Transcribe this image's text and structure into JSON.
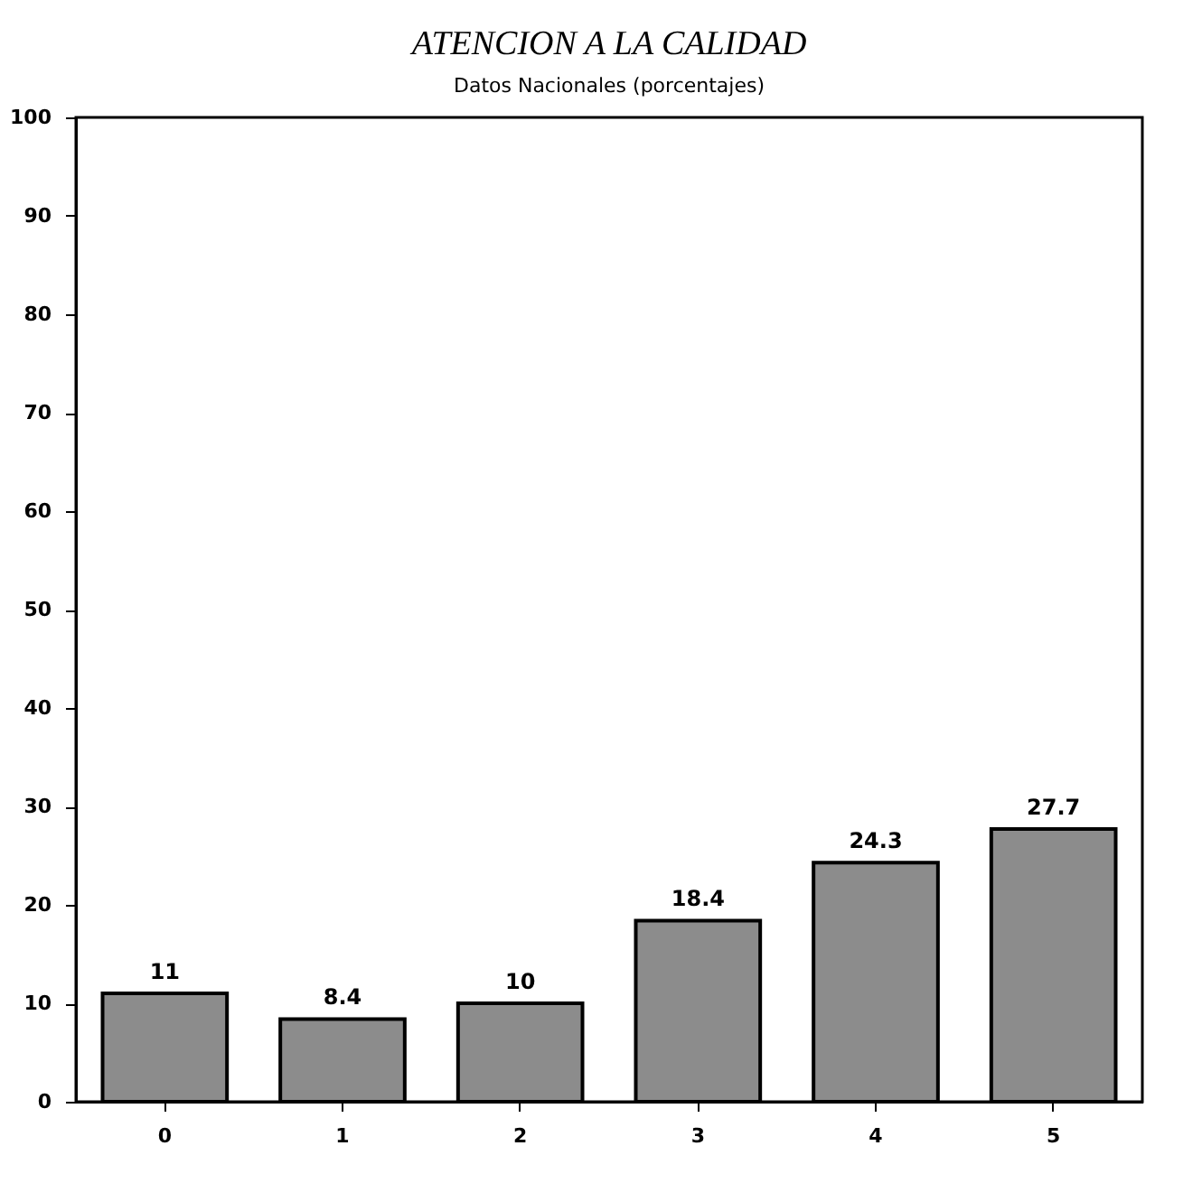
{
  "chart_data": {
    "type": "bar",
    "title": "ATENCION A LA CALIDAD",
    "subtitle": "Datos Nacionales (porcentajes)",
    "categories": [
      "0",
      "1",
      "2",
      "3",
      "4",
      "5"
    ],
    "values": [
      11,
      8.4,
      10,
      18.4,
      24.3,
      27.7
    ],
    "color": "#8c8c8c",
    "ylim": [
      0,
      100
    ],
    "yticks": [
      0,
      10,
      20,
      30,
      40,
      50,
      60,
      70,
      80,
      90,
      100
    ],
    "data_labels": true
  }
}
